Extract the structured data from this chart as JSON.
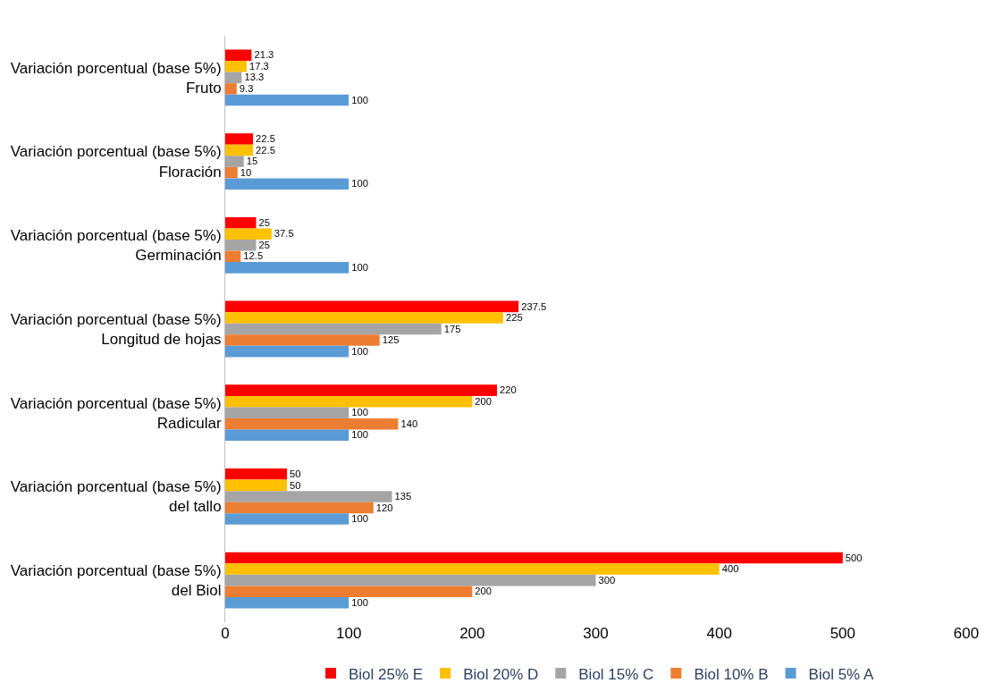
{
  "chart_data": {
    "type": "bar",
    "orientation": "horizontal",
    "categories": [
      "Variación porcentual (base 5%)\nFruto",
      "Variación porcentual (base 5%)\nFloración",
      "Variación porcentual (base 5%)\nGerminación",
      "Variación porcentual (base 5%)\nLongitud de hojas",
      "Variación porcentual (base 5%)\nRadicular",
      "Variación porcentual (base 5%)\ndel tallo",
      "Variación porcentual (base 5%)\ndel Biol"
    ],
    "series": [
      {
        "name": "Biol 25% E",
        "color": "#ff0000",
        "values": [
          21.3,
          22.5,
          25,
          237.5,
          220,
          50,
          500
        ]
      },
      {
        "name": "Biol 20% D",
        "color": "#ffc000",
        "values": [
          17.3,
          22.5,
          37.5,
          225,
          200,
          50,
          400
        ]
      },
      {
        "name": "Biol 15% C",
        "color": "#a5a5a5",
        "values": [
          13.3,
          15,
          25,
          175,
          100,
          135,
          300
        ]
      },
      {
        "name": "Biol 10% B",
        "color": "#ed7d31",
        "values": [
          9.3,
          10,
          12.5,
          125,
          140,
          120,
          200
        ]
      },
      {
        "name": "Biol 5% A",
        "color": "#5b9bd5",
        "values": [
          100,
          100,
          100,
          100,
          100,
          100,
          100
        ]
      }
    ],
    "xlim": [
      0,
      600
    ],
    "xticks": [
      0,
      100,
      200,
      300,
      400,
      500,
      600
    ],
    "data_labels": true,
    "legend": "bottom"
  }
}
